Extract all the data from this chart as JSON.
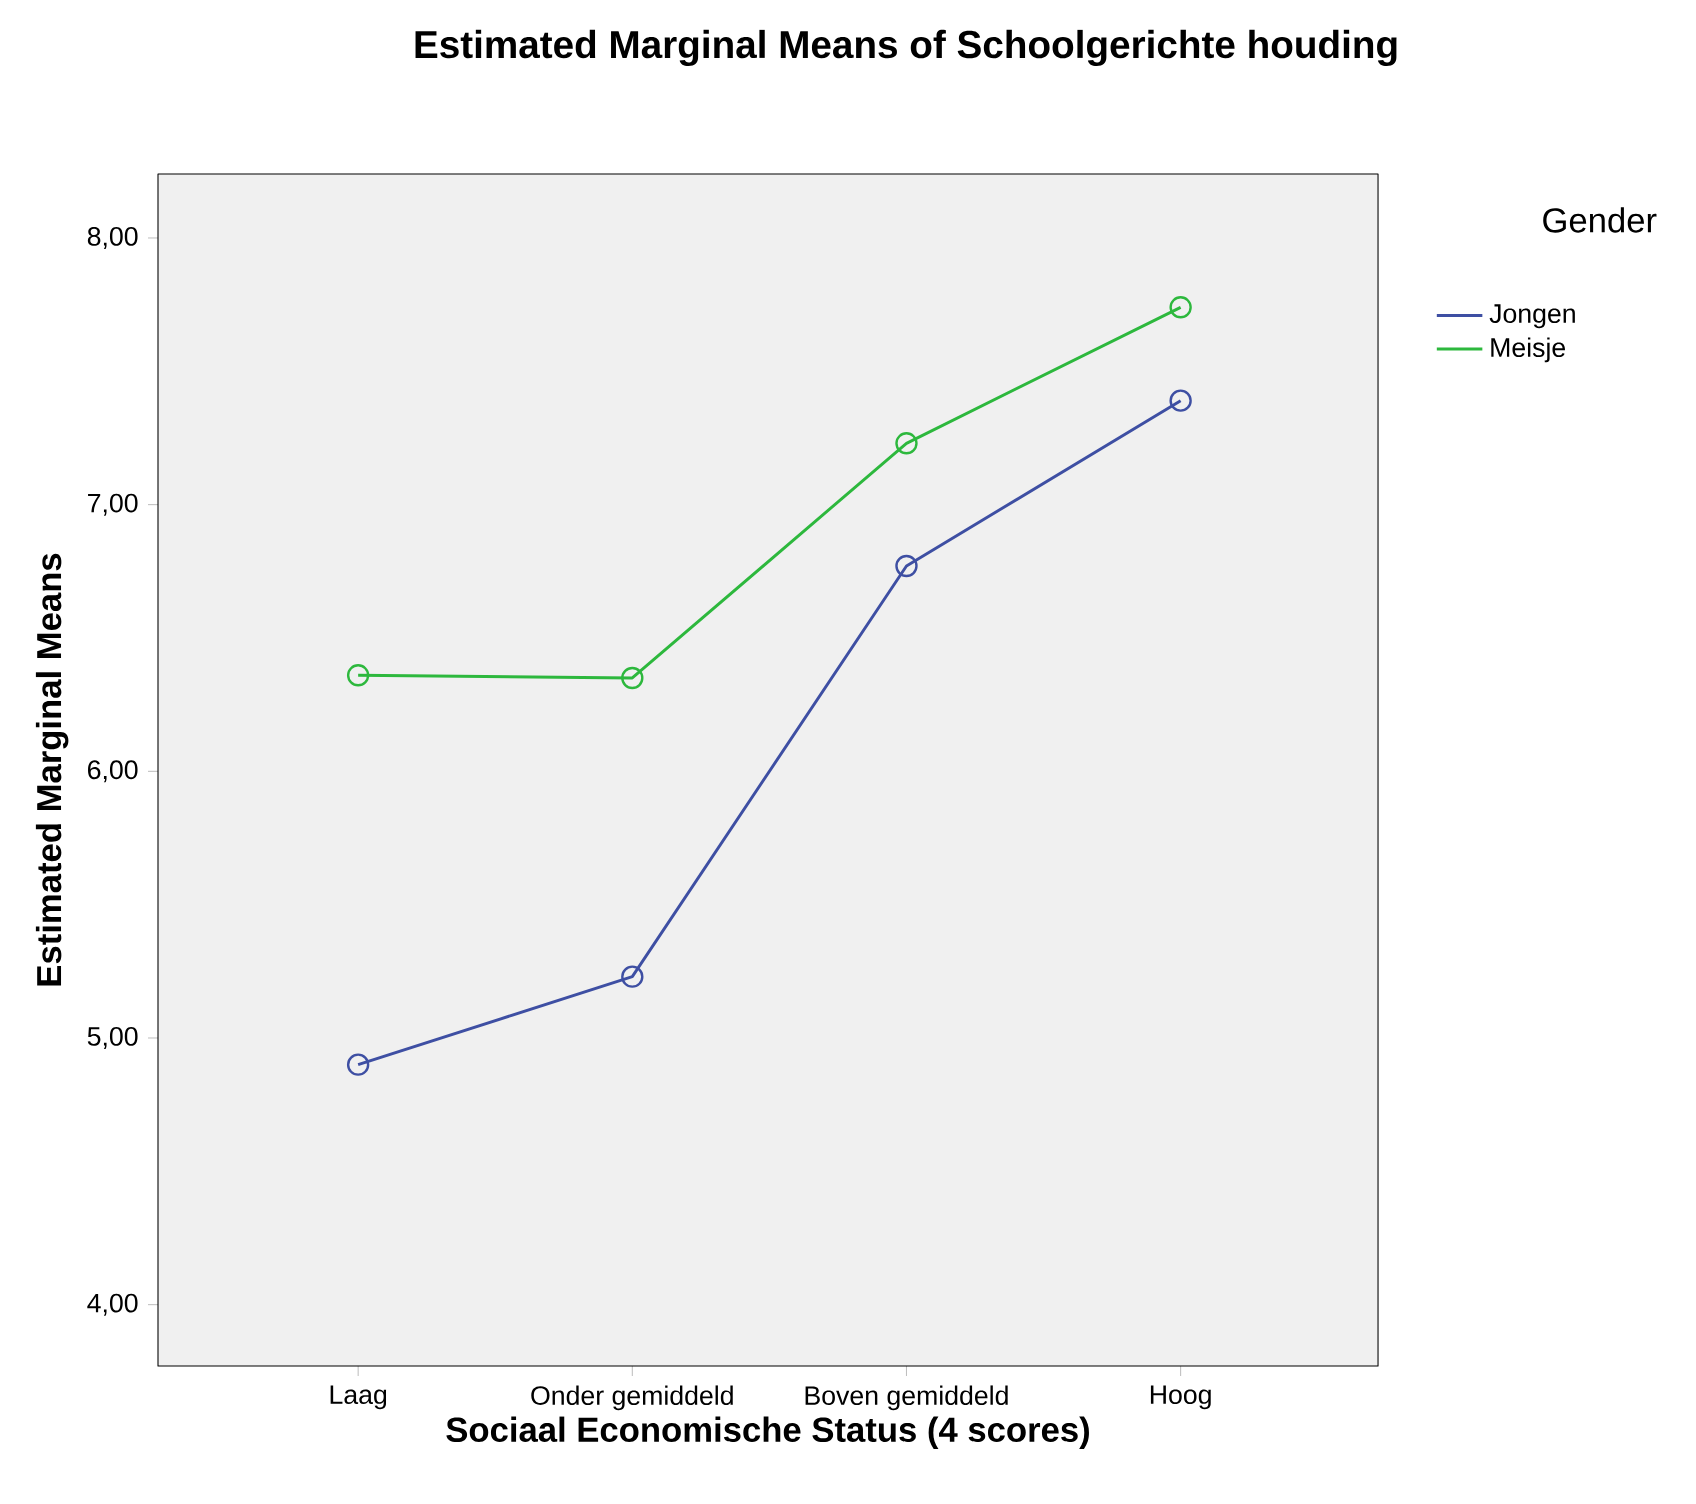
{
  "chart_data": {
    "type": "line",
    "title": "Estimated Marginal Means of Schoolgerichte houding",
    "xlabel": "Sociaal Economische Status (4 scores)",
    "ylabel": "Estimated Marginal Means",
    "legend_title": "Gender",
    "categories": [
      "Laag",
      "Onder gemiddeld",
      "Boven gemiddeld",
      "Hoog"
    ],
    "series": [
      {
        "name": "Jongen",
        "color": "#3e4fa3",
        "values": [
          4.9,
          5.23,
          6.77,
          7.39
        ]
      },
      {
        "name": "Meisje",
        "color": "#2db83d",
        "values": [
          6.36,
          6.35,
          7.23,
          7.74
        ]
      }
    ],
    "ylim": [
      3.77,
      8.24
    ],
    "yticks": [
      {
        "value": 4,
        "label": "4,00"
      },
      {
        "value": 5,
        "label": "5,00"
      },
      {
        "value": 6,
        "label": "6,00"
      },
      {
        "value": 7,
        "label": "7,00"
      },
      {
        "value": 8,
        "label": "8,00"
      }
    ],
    "grid": false,
    "legend": "right",
    "marker": "circle",
    "line_style": "solid"
  }
}
